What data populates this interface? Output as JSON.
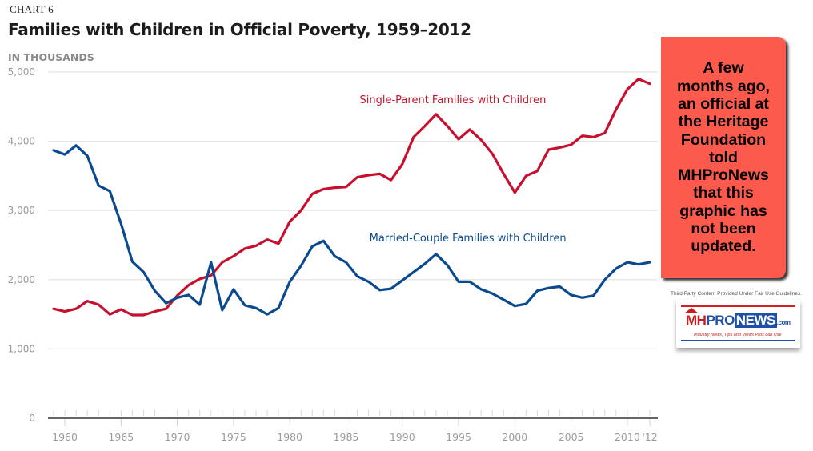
{
  "chart_data": {
    "type": "line",
    "chart_label": "CHART 6",
    "title": "Families with Children in Official Poverty, 1959–2012",
    "ylabel": "IN THOUSANDS",
    "xlabel": "",
    "ylim": [
      0,
      5000
    ],
    "xlim": [
      1959,
      2012
    ],
    "yticks": [
      0,
      1000,
      2000,
      3000,
      4000,
      5000
    ],
    "ytick_labels": [
      "0",
      "1,000",
      "2,000",
      "3,000",
      "4,000",
      "5,000"
    ],
    "xticks": [
      1960,
      1965,
      1970,
      1975,
      1980,
      1985,
      1990,
      1995,
      2000,
      2005,
      2010,
      2012
    ],
    "xtick_labels": [
      "1960",
      "1965",
      "1970",
      "1975",
      "1980",
      "1985",
      "1990",
      "1995",
      "2000",
      "2005",
      "2010",
      "'12"
    ],
    "grid": true,
    "legend": "inline-labels",
    "x": [
      1959,
      1960,
      1961,
      1962,
      1963,
      1964,
      1965,
      1966,
      1967,
      1968,
      1969,
      1970,
      1971,
      1972,
      1973,
      1974,
      1975,
      1976,
      1977,
      1978,
      1979,
      1980,
      1981,
      1982,
      1983,
      1984,
      1985,
      1986,
      1987,
      1988,
      1989,
      1990,
      1991,
      1992,
      1993,
      1994,
      1995,
      1996,
      1997,
      1998,
      1999,
      2000,
      2001,
      2002,
      2003,
      2004,
      2005,
      2006,
      2007,
      2008,
      2009,
      2010,
      2011,
      2012
    ],
    "series": [
      {
        "name": "Single-Parent Families with Children",
        "color": "#c8102e",
        "label_position": "above-line-center",
        "values": [
          1580,
          1540,
          1580,
          1690,
          1640,
          1500,
          1570,
          1490,
          1490,
          1540,
          1580,
          1770,
          1920,
          2010,
          2060,
          2250,
          2340,
          2450,
          2490,
          2580,
          2520,
          2840,
          3000,
          3240,
          3310,
          3330,
          3340,
          3480,
          3510,
          3530,
          3440,
          3670,
          4060,
          4220,
          4390,
          4220,
          4030,
          4170,
          4020,
          3820,
          3530,
          3260,
          3500,
          3570,
          3880,
          3910,
          3950,
          4080,
          4060,
          4120,
          4460,
          4750,
          4900,
          4830
        ]
      },
      {
        "name": "Married-Couple Families with Children",
        "color": "#0b4a8f",
        "label_position": "above-line-center",
        "values": [
          3870,
          3810,
          3940,
          3790,
          3360,
          3280,
          2810,
          2260,
          2110,
          1840,
          1660,
          1740,
          1780,
          1640,
          2250,
          1560,
          1860,
          1630,
          1590,
          1500,
          1590,
          1970,
          2200,
          2480,
          2560,
          2340,
          2250,
          2050,
          1970,
          1850,
          1870,
          1990,
          2110,
          2230,
          2370,
          2210,
          1970,
          1970,
          1860,
          1800,
          1710,
          1620,
          1650,
          1840,
          1880,
          1900,
          1780,
          1740,
          1770,
          2000,
          2160,
          2250,
          2220,
          2250
        ]
      }
    ]
  },
  "callout": {
    "lines": [
      "A few",
      "months ago,",
      "an official at",
      "the Heritage",
      "Foundation",
      "told",
      "MHProNews",
      "that this",
      "graphic has",
      "not been",
      "updated."
    ],
    "background": "#fd5a4e"
  },
  "attribution": {
    "fair_use_text": "Third Party Content Provided Under Fair Use Guidelines.",
    "logo_mh": "MH",
    "logo_pro": "PRO",
    "logo_news": "NEWS",
    "logo_com": ".com",
    "logo_tagline": "Industry News, Tips and Views Pros can Use"
  }
}
